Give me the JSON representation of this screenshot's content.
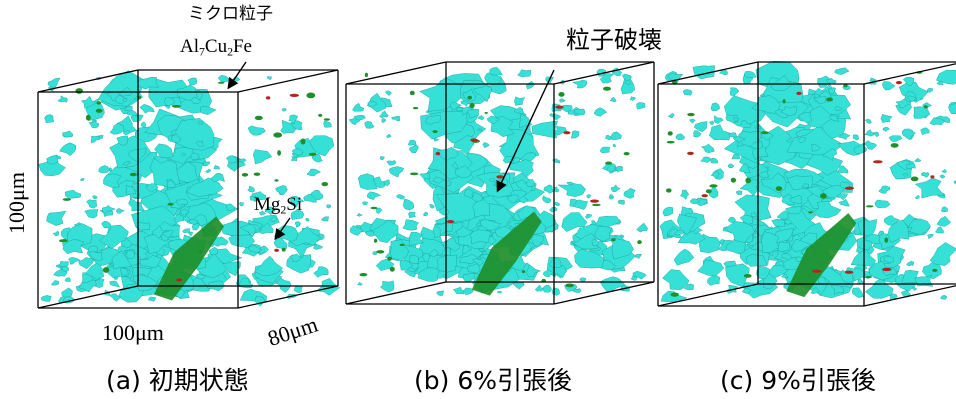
{
  "annotations": {
    "micro_particle_label": "ミクロ粒子",
    "al_cu_fe": {
      "p1": "Al",
      "s1": "7",
      "p2": "Cu",
      "s2": "2",
      "p3": "Fe"
    },
    "mg_si": {
      "p1": "Mg",
      "s1": "2",
      "p2": "Si"
    },
    "particle_fracture_label": "粒子破壊"
  },
  "dimensions": {
    "height": "100μm",
    "width": "100μm",
    "depth": "80μm"
  },
  "captions": [
    "(a) 初期状態",
    "(b) 6%引張後",
    "(c) 9%引張後"
  ],
  "colors": {
    "cyan_particles": "#35e0d6",
    "green_particles": "#1e8f2a",
    "red_voids": "#b3241c",
    "box_edges": "#000000"
  }
}
